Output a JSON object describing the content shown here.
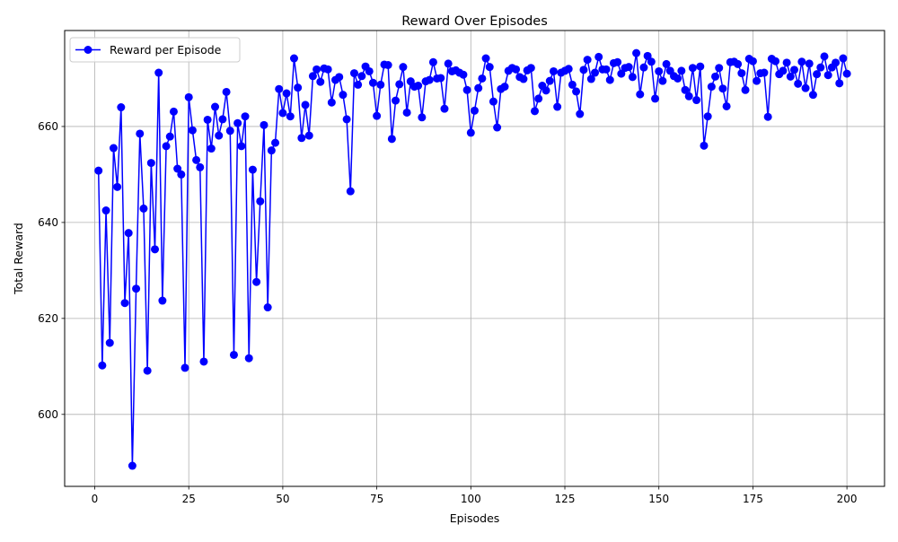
{
  "chart_data": {
    "type": "line",
    "title": "Reward Over Episodes",
    "xlabel": "Episodes",
    "ylabel": "Total Reward",
    "xlim": [
      -8,
      210
    ],
    "ylim": [
      585,
      680
    ],
    "xticks": [
      0,
      25,
      50,
      75,
      100,
      125,
      150,
      175,
      200
    ],
    "yticks": [
      600,
      620,
      640,
      660
    ],
    "grid": true,
    "legend": {
      "placement": "top-left",
      "entries": [
        "Reward per Episode"
      ]
    },
    "series": [
      {
        "name": "Reward per Episode",
        "color": "#0000ff",
        "marker": "circle",
        "x": [
          1,
          2,
          3,
          4,
          5,
          6,
          7,
          8,
          9,
          10,
          11,
          12,
          13,
          14,
          15,
          16,
          17,
          18,
          19,
          20,
          21,
          22,
          23,
          24,
          25,
          26,
          27,
          28,
          29,
          30,
          31,
          32,
          33,
          34,
          35,
          36,
          37,
          38,
          39,
          40,
          41,
          42,
          43,
          44,
          45,
          46,
          47,
          48,
          49,
          50,
          51,
          52,
          53,
          54,
          55,
          56,
          57,
          58,
          59,
          60,
          61,
          62,
          63,
          64,
          65,
          66,
          67,
          68,
          69,
          70,
          71,
          72,
          73,
          74,
          75,
          76,
          77,
          78,
          79,
          80,
          81,
          82,
          83,
          84,
          85,
          86,
          87,
          88,
          89,
          90,
          91,
          92,
          93,
          94,
          95,
          96,
          97,
          98,
          99,
          100,
          101,
          102,
          103,
          104,
          105,
          106,
          107,
          108,
          109,
          110,
          111,
          112,
          113,
          114,
          115,
          116,
          117,
          118,
          119,
          120,
          121,
          122,
          123,
          124,
          125,
          126,
          127,
          128,
          129,
          130,
          131,
          132,
          133,
          134,
          135,
          136,
          137,
          138,
          139,
          140,
          141,
          142,
          143,
          144,
          145,
          146,
          147,
          148,
          149,
          150,
          151,
          152,
          153,
          154,
          155,
          156,
          157,
          158,
          159,
          160,
          161,
          162,
          163,
          164,
          165,
          166,
          167,
          168,
          169,
          170,
          171,
          172,
          173,
          174,
          175,
          176,
          177,
          178,
          179,
          180,
          181,
          182,
          183,
          184,
          185,
          186,
          187,
          188,
          189,
          190,
          191,
          192,
          193,
          194,
          195,
          196,
          197,
          198,
          199,
          200
        ],
        "values": [
          650.8,
          610.2,
          642.5,
          614.9,
          655.5,
          647.4,
          664,
          623.2,
          637.8,
          589.3,
          626.2,
          658.5,
          642.9,
          609.1,
          652.4,
          634.4,
          671.2,
          623.7,
          655.9,
          657.9,
          663.1,
          651.2,
          650,
          609.7,
          666.1,
          659.2,
          653,
          651.5,
          611,
          661.4,
          655.4,
          664.1,
          658.1,
          661.5,
          667.2,
          659.1,
          612.4,
          660.7,
          655.9,
          662.1,
          611.7,
          651,
          627.6,
          644.4,
          660.3,
          622.3,
          655,
          656.6,
          667.8,
          662.8,
          666.9,
          662.1,
          674.2,
          668.1,
          657.6,
          664.5,
          658.1,
          670.5,
          671.9,
          669.3,
          672.1,
          671.9,
          665,
          669.7,
          670.3,
          666.6,
          661.5,
          646.5,
          671.1,
          668.7,
          670.5,
          672.5,
          671.5,
          669.1,
          662.2,
          668.7,
          672.9,
          672.8,
          657.4,
          665.4,
          668.8,
          672.4,
          662.9,
          669.4,
          668.3,
          668.5,
          661.9,
          669.4,
          669.7,
          673.4,
          670,
          670.1,
          663.7,
          673.1,
          671.5,
          671.7,
          671.2,
          670.8,
          667.6,
          658.7,
          663.3,
          668,
          670,
          674.2,
          672.4,
          665.2,
          659.8,
          667.8,
          668.3,
          671.6,
          672.2,
          671.9,
          670.3,
          669.9,
          671.7,
          672.2,
          663.2,
          665.8,
          668.5,
          667.5,
          669.5,
          671.5,
          664.1,
          671.2,
          671.6,
          672,
          668.7,
          667.3,
          662.6,
          671.8,
          673.9,
          669.9,
          671.2,
          674.5,
          671.9,
          671.9,
          669.7,
          673.2,
          673.4,
          671,
          672.2,
          672.4,
          670.3,
          675.3,
          666.7,
          672.3,
          674.7,
          673.5,
          665.8,
          671.5,
          669.5,
          673,
          671.6,
          670.5,
          670,
          671.6,
          667.6,
          666.3,
          672.2,
          665.5,
          672.5,
          656,
          662.1,
          668.3,
          670.4,
          672.2,
          667.9,
          664.2,
          673.4,
          673.5,
          673,
          671.1,
          667.6,
          674.1,
          673.6,
          669.5,
          671.1,
          671.2,
          662,
          674.1,
          673.6,
          670.9,
          671.6,
          673.3,
          670.4,
          671.8,
          668.9,
          673.5,
          668,
          673.1,
          666.6,
          670.9,
          672.3,
          674.6,
          670.7,
          672.3,
          673.3,
          669,
          674.2,
          671
        ]
      }
    ]
  }
}
